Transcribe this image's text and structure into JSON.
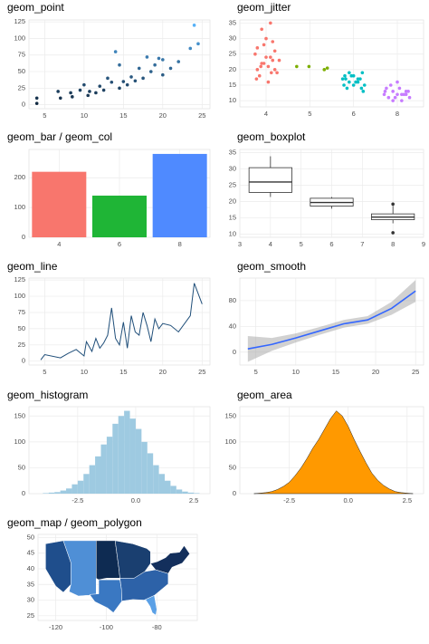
{
  "chart_data": [
    {
      "type": "scatter",
      "title": "geom_point",
      "grid": true,
      "color_scale": [
        "#132b43",
        "#56b1f7"
      ],
      "xlim": [
        3,
        26
      ],
      "xticks": [
        5,
        10,
        15,
        20,
        25
      ],
      "ylim": [
        -6,
        128
      ],
      "yticks": [
        0,
        25,
        50,
        75,
        100,
        125
      ],
      "series": [
        {
          "x": [
            4,
            4,
            6.7,
            7,
            8.3,
            8.5,
            9.5,
            10,
            10.5,
            10.7,
            11.5,
            12,
            12.5,
            13,
            13.5,
            14,
            14.5,
            14.5,
            15,
            15.5,
            16,
            16.5,
            17,
            17.5,
            18,
            18.5,
            19,
            19.5,
            20,
            20,
            21,
            22,
            23.5,
            24,
            24.5
          ],
          "y": [
            2,
            10,
            20,
            10,
            18,
            12,
            22,
            30,
            14,
            20,
            18,
            28,
            22,
            40,
            34,
            80,
            25,
            60,
            35,
            30,
            42,
            36,
            55,
            40,
            72,
            50,
            60,
            70,
            45,
            68,
            55,
            65,
            85,
            120,
            92
          ]
        }
      ]
    },
    {
      "type": "scatter",
      "title": "geom_jitter",
      "grid": true,
      "xlim": [
        0.4,
        4.6
      ],
      "xticks": [
        {
          "value": 1,
          "label": "4"
        },
        {
          "value": 2,
          "label": "5"
        },
        {
          "value": 3,
          "label": "6"
        },
        {
          "value": 4,
          "label": "8"
        }
      ],
      "ylim": [
        8,
        36
      ],
      "yticks": [
        10,
        15,
        20,
        25,
        30,
        35
      ],
      "series": [
        {
          "color": "#f8766d",
          "x": [
            0.8,
            0.9,
            1.1,
            1.2,
            0.85,
            1.05,
            1.15,
            0.95,
            1.25,
            0.75,
            1.0,
            1.1,
            0.9,
            1.2,
            0.8,
            1.05,
            0.95,
            1.15,
            1.0,
            0.88,
            1.12,
            1.3,
            0.78
          ],
          "y": [
            20,
            22,
            24,
            26,
            18,
            21,
            23,
            28,
            19,
            25,
            30,
            35,
            33,
            20,
            27,
            16,
            22,
            29,
            24,
            21,
            19,
            23,
            17
          ]
        },
        {
          "color": "#7cae00",
          "x": [
            1.7,
            1.98,
            2.33,
            2.4
          ],
          "y": [
            21,
            21,
            20,
            20.5
          ]
        },
        {
          "color": "#00bfc4",
          "x": [
            2.75,
            2.8,
            2.9,
            3.0,
            3.1,
            3.2,
            3.25,
            2.85,
            2.95,
            3.05,
            3.15,
            2.78,
            3.22,
            3.0,
            2.9,
            3.1,
            3.18,
            2.82
          ],
          "y": [
            17,
            18,
            16,
            15,
            17,
            19,
            15,
            14,
            18,
            16,
            17,
            15,
            13,
            18,
            19,
            16,
            14,
            17
          ]
        },
        {
          "color": "#c77cff",
          "x": [
            3.7,
            3.75,
            3.8,
            3.9,
            4.0,
            4.1,
            4.2,
            4.25,
            3.85,
            3.95,
            4.05,
            4.15,
            4.28,
            3.72,
            3.9,
            4.1,
            4.0,
            4.2
          ],
          "y": [
            12,
            14,
            11,
            13,
            12,
            10,
            12,
            13,
            15,
            11,
            14,
            12,
            11,
            13,
            10,
            12,
            16,
            13
          ]
        }
      ]
    },
    {
      "type": "bar",
      "title": "geom_bar / geom_col",
      "grid": true,
      "categories": [
        "4",
        "6",
        "8"
      ],
      "values": [
        220,
        140,
        280
      ],
      "colors": [
        "#f8766d",
        "#1fb536",
        "#4f8aff"
      ],
      "ylim": [
        0,
        295
      ],
      "yticks": [
        0,
        100,
        200
      ]
    },
    {
      "type": "boxplot",
      "title": "geom_boxplot",
      "grid": true,
      "xlim": [
        3,
        9
      ],
      "xticks": [
        3,
        4,
        5,
        6,
        7,
        8,
        9
      ],
      "ylim": [
        9,
        36
      ],
      "yticks": [
        10,
        15,
        20,
        25,
        30,
        35
      ],
      "boxes": [
        {
          "x": 4,
          "low": 21.4,
          "q1": 22.8,
          "median": 26,
          "q3": 30.4,
          "high": 33.9,
          "outliers": []
        },
        {
          "x": 6,
          "low": 17.8,
          "q1": 18.6,
          "median": 19.7,
          "q3": 21,
          "high": 21.4,
          "outliers": []
        },
        {
          "x": 8,
          "low": 13.3,
          "q1": 14.4,
          "median": 15.2,
          "q3": 16.2,
          "high": 18.7,
          "outliers": [
            10.4,
            19.2
          ]
        }
      ]
    },
    {
      "type": "line",
      "title": "geom_line",
      "grid": true,
      "color": "#1f4e79",
      "xlim": [
        3,
        26
      ],
      "xticks": [
        5,
        10,
        15,
        20,
        25
      ],
      "ylim": [
        -6,
        128
      ],
      "yticks": [
        0,
        25,
        50,
        75,
        100,
        125
      ],
      "series": [
        {
          "x": [
            4.5,
            5,
            7,
            8,
            9,
            10,
            10.3,
            11,
            11.5,
            12,
            12.5,
            13,
            13.5,
            14,
            14.5,
            15,
            15.5,
            16,
            16.5,
            17,
            17.5,
            18,
            18.5,
            19,
            19.5,
            20,
            21,
            22,
            23.5,
            24,
            25
          ],
          "y": [
            2,
            10,
            5,
            12,
            18,
            8,
            30,
            15,
            35,
            20,
            28,
            40,
            82,
            35,
            25,
            60,
            20,
            70,
            45,
            40,
            75,
            55,
            30,
            65,
            50,
            58,
            55,
            45,
            70,
            120,
            88
          ]
        }
      ]
    },
    {
      "type": "smooth",
      "title": "geom_smooth",
      "grid": true,
      "color": "#3366ff",
      "xlim": [
        3,
        26
      ],
      "xticks": [
        5,
        10,
        15,
        20,
        25
      ],
      "ylim": [
        -20,
        115
      ],
      "yticks": [
        0,
        40,
        80
      ],
      "x": [
        4,
        7,
        10,
        13,
        16,
        19,
        22,
        25
      ],
      "y": [
        5,
        12,
        22,
        33,
        44,
        50,
        68,
        95
      ],
      "lower": [
        -15,
        2,
        15,
        27,
        38,
        44,
        58,
        78
      ],
      "upper": [
        25,
        22,
        29,
        39,
        50,
        56,
        78,
        112
      ]
    },
    {
      "type": "histogram",
      "title": "geom_histogram",
      "grid": true,
      "color": "#9ecae1",
      "xlim": [
        -4.6,
        3.2
      ],
      "xticks": [
        -2.5,
        {
          "value": 0,
          "label": "0.0"
        },
        2.5
      ],
      "ylim": [
        0,
        168
      ],
      "yticks": [
        0,
        50,
        100,
        150
      ],
      "bins": [
        -4,
        -3.75,
        -3.5,
        -3.25,
        -3,
        -2.75,
        -2.5,
        -2.25,
        -2,
        -1.75,
        -1.5,
        -1.25,
        -1,
        -0.75,
        -0.5,
        -0.25,
        0,
        0.25,
        0.5,
        0.75,
        1,
        1.25,
        1.5,
        1.75,
        2,
        2.25,
        2.5,
        2.75
      ],
      "values": [
        1,
        2,
        3,
        6,
        10,
        18,
        25,
        38,
        55,
        72,
        95,
        110,
        135,
        150,
        160,
        145,
        125,
        100,
        78,
        55,
        38,
        25,
        15,
        8,
        4,
        2,
        1
      ]
    },
    {
      "type": "area",
      "title": "geom_area",
      "grid": true,
      "color": "#ff9900",
      "xlim": [
        -4.6,
        3.2
      ],
      "xticks": [
        -2.5,
        {
          "value": 0,
          "label": "0.0"
        },
        2.5
      ],
      "ylim": [
        0,
        168
      ],
      "yticks": [
        0,
        50,
        100,
        150
      ],
      "x": [
        -4,
        -3.75,
        -3.5,
        -3.25,
        -3,
        -2.75,
        -2.5,
        -2.25,
        -2,
        -1.75,
        -1.5,
        -1.25,
        -1,
        -0.75,
        -0.5,
        -0.25,
        0,
        0.25,
        0.5,
        0.75,
        1,
        1.25,
        1.5,
        1.75,
        2,
        2.25,
        2.5,
        2.75
      ],
      "y": [
        0,
        1,
        2,
        4,
        8,
        14,
        22,
        35,
        50,
        68,
        88,
        105,
        125,
        145,
        160,
        150,
        130,
        105,
        82,
        60,
        40,
        26,
        16,
        9,
        4,
        2,
        1,
        0
      ]
    },
    {
      "type": "map",
      "title": "geom_map / geom_polygon",
      "grid": true,
      "xlim": [
        -127,
        -64
      ],
      "xticks": [
        -120,
        -100,
        -80
      ],
      "ylim": [
        23.5,
        51
      ],
      "yticks": [
        25,
        30,
        35,
        40,
        45,
        50
      ],
      "regions": [
        {
          "color": "#1f4e8c",
          "x": [
            -124,
            -117,
            -114,
            -114,
            -117,
            -120,
            -124
          ],
          "y": [
            48,
            49,
            42,
            35,
            32.5,
            34.5,
            40
          ]
        },
        {
          "color": "#4f8fd6",
          "x": [
            -117,
            -104,
            -104,
            -108,
            -111,
            -114.7,
            -114,
            -114
          ],
          "y": [
            49,
            49,
            31.5,
            31.5,
            31.3,
            32.7,
            35,
            42
          ]
        },
        {
          "color": "#0e2b52",
          "x": [
            -104,
            -96.5,
            -95,
            -94.6,
            -100,
            -103,
            -104
          ],
          "y": [
            49,
            49,
            40,
            37,
            37,
            36.5,
            37
          ]
        },
        {
          "color": "#3a78c2",
          "x": [
            -103,
            -94.6,
            -94,
            -93.8,
            -97.2,
            -99.5,
            -104.5,
            -106.6,
            -103
          ],
          "y": [
            36.5,
            36.5,
            33.5,
            29.7,
            26,
            27.5,
            29.5,
            31.8,
            32
          ]
        },
        {
          "color": "#1a3f70",
          "x": [
            -96.5,
            -89.5,
            -84,
            -82.5,
            -82.5,
            -84.8,
            -89,
            -94.6,
            -95
          ],
          "y": [
            49,
            48,
            46.5,
            45.5,
            41.7,
            39.1,
            37,
            37,
            40
          ]
        },
        {
          "color": "#2d62a8",
          "x": [
            -94.6,
            -89,
            -84.8,
            -80.5,
            -75.5,
            -75.5,
            -81,
            -85,
            -89.5,
            -93.8,
            -94
          ],
          "y": [
            37,
            37,
            39.1,
            39.7,
            38.5,
            35.2,
            31.5,
            30,
            30.2,
            29.7,
            33.5
          ]
        },
        {
          "color": "#5aa0e6",
          "x": [
            -85,
            -81,
            -80,
            -80.4,
            -81.8,
            -82.7,
            -84.3
          ],
          "y": [
            30,
            31.5,
            27,
            25.2,
            26,
            28,
            30
          ]
        },
        {
          "color": "#132f5c",
          "x": [
            -82.5,
            -79.8,
            -76.5,
            -74.7,
            -71,
            -69.2,
            -67,
            -70,
            -74,
            -75.5,
            -80.5
          ],
          "y": [
            41.7,
            42.3,
            43.6,
            45,
            45.3,
            47.4,
            44.8,
            41.8,
            40.5,
            38.5,
            39.7
          ]
        }
      ]
    }
  ]
}
